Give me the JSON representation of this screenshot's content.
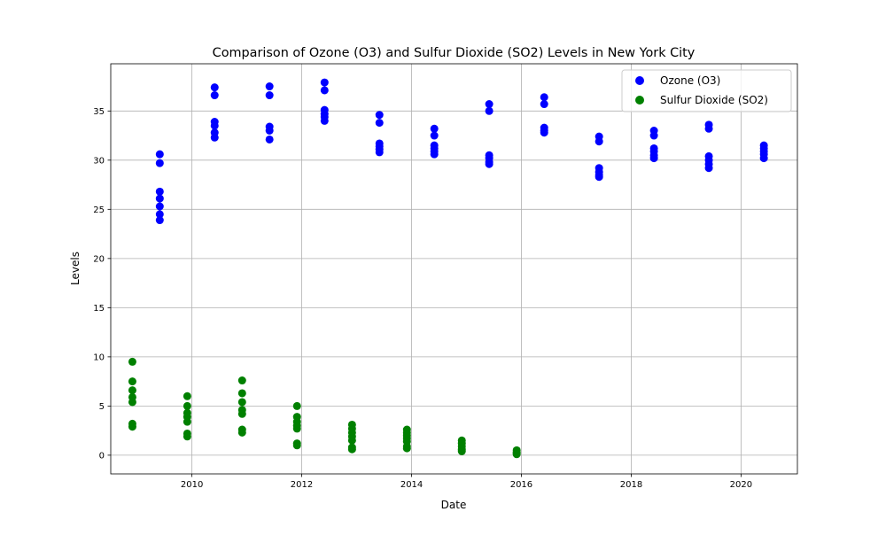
{
  "chart_data": {
    "type": "scatter",
    "title": "Comparison of Ozone (O3) and Sulfur Dioxide (SO2) Levels in New York City",
    "xlabel": "Date",
    "ylabel": "Levels",
    "x_axis_type": "date",
    "xlim": [
      "2008-07-10",
      "2021-01-10"
    ],
    "ylim": [
      -1.9,
      39.8
    ],
    "x_ticks": [
      "2010",
      "2012",
      "2014",
      "2016",
      "2018",
      "2020"
    ],
    "x_tick_dates": [
      "2010-01-01",
      "2012-01-01",
      "2014-01-01",
      "2016-01-01",
      "2018-01-01",
      "2020-01-01"
    ],
    "y_ticks": [
      0,
      5,
      10,
      15,
      20,
      25,
      30,
      35
    ],
    "grid": true,
    "legend_position": "top-right",
    "series": [
      {
        "name": "Ozone (O3)",
        "color": "#0000ff",
        "points": [
          [
            "2009-06-01",
            30.6
          ],
          [
            "2009-06-01",
            29.7
          ],
          [
            "2009-06-01",
            26.8
          ],
          [
            "2009-06-01",
            26.1
          ],
          [
            "2009-06-01",
            25.3
          ],
          [
            "2009-06-01",
            24.5
          ],
          [
            "2009-06-01",
            23.9
          ],
          [
            "2010-06-01",
            37.4
          ],
          [
            "2010-06-01",
            36.6
          ],
          [
            "2010-06-01",
            33.9
          ],
          [
            "2010-06-01",
            33.5
          ],
          [
            "2010-06-01",
            32.8
          ],
          [
            "2010-06-01",
            32.3
          ],
          [
            "2011-06-01",
            37.5
          ],
          [
            "2011-06-01",
            36.6
          ],
          [
            "2011-06-01",
            33.4
          ],
          [
            "2011-06-01",
            33.0
          ],
          [
            "2011-06-01",
            32.1
          ],
          [
            "2012-06-01",
            37.9
          ],
          [
            "2012-06-01",
            37.1
          ],
          [
            "2012-06-01",
            35.1
          ],
          [
            "2012-06-01",
            34.7
          ],
          [
            "2012-06-01",
            34.4
          ],
          [
            "2012-06-01",
            34.0
          ],
          [
            "2013-06-01",
            34.6
          ],
          [
            "2013-06-01",
            33.8
          ],
          [
            "2013-06-01",
            31.7
          ],
          [
            "2013-06-01",
            31.4
          ],
          [
            "2013-06-01",
            31.1
          ],
          [
            "2013-06-01",
            30.8
          ],
          [
            "2014-06-01",
            33.2
          ],
          [
            "2014-06-01",
            32.5
          ],
          [
            "2014-06-01",
            31.5
          ],
          [
            "2014-06-01",
            31.2
          ],
          [
            "2014-06-01",
            30.9
          ],
          [
            "2014-06-01",
            30.6
          ],
          [
            "2015-06-01",
            35.7
          ],
          [
            "2015-06-01",
            35.0
          ],
          [
            "2015-06-01",
            30.5
          ],
          [
            "2015-06-01",
            30.2
          ],
          [
            "2015-06-01",
            29.8
          ],
          [
            "2015-06-01",
            29.6
          ],
          [
            "2016-06-01",
            36.4
          ],
          [
            "2016-06-01",
            35.7
          ],
          [
            "2016-06-01",
            33.3
          ],
          [
            "2016-06-01",
            33.0
          ],
          [
            "2016-06-01",
            32.8
          ],
          [
            "2017-06-01",
            32.4
          ],
          [
            "2017-06-01",
            31.9
          ],
          [
            "2017-06-01",
            29.2
          ],
          [
            "2017-06-01",
            28.8
          ],
          [
            "2017-06-01",
            28.5
          ],
          [
            "2017-06-01",
            28.3
          ],
          [
            "2018-06-01",
            33.0
          ],
          [
            "2018-06-01",
            32.5
          ],
          [
            "2018-06-01",
            31.2
          ],
          [
            "2018-06-01",
            30.9
          ],
          [
            "2018-06-01",
            30.5
          ],
          [
            "2018-06-01",
            30.2
          ],
          [
            "2019-06-01",
            33.6
          ],
          [
            "2019-06-01",
            33.2
          ],
          [
            "2019-06-01",
            30.4
          ],
          [
            "2019-06-01",
            30.0
          ],
          [
            "2019-06-01",
            29.6
          ],
          [
            "2019-06-01",
            29.2
          ],
          [
            "2020-06-01",
            31.5
          ],
          [
            "2020-06-01",
            31.2
          ],
          [
            "2020-06-01",
            30.9
          ],
          [
            "2020-06-01",
            30.6
          ],
          [
            "2020-06-01",
            30.2
          ]
        ]
      },
      {
        "name": "Sulfur Dioxide (SO2)",
        "color": "#008000",
        "points": [
          [
            "2008-12-01",
            9.5
          ],
          [
            "2008-12-01",
            7.5
          ],
          [
            "2008-12-01",
            6.6
          ],
          [
            "2008-12-01",
            5.9
          ],
          [
            "2008-12-01",
            5.4
          ],
          [
            "2008-12-01",
            3.2
          ],
          [
            "2008-12-01",
            2.9
          ],
          [
            "2009-12-01",
            6.0
          ],
          [
            "2009-12-01",
            5.0
          ],
          [
            "2009-12-01",
            4.3
          ],
          [
            "2009-12-01",
            3.9
          ],
          [
            "2009-12-01",
            3.4
          ],
          [
            "2009-12-01",
            2.2
          ],
          [
            "2009-12-01",
            1.9
          ],
          [
            "2010-12-01",
            7.6
          ],
          [
            "2010-12-01",
            6.3
          ],
          [
            "2010-12-01",
            5.4
          ],
          [
            "2010-12-01",
            4.6
          ],
          [
            "2010-12-01",
            4.2
          ],
          [
            "2010-12-01",
            2.6
          ],
          [
            "2010-12-01",
            2.3
          ],
          [
            "2011-12-01",
            5.0
          ],
          [
            "2011-12-01",
            3.9
          ],
          [
            "2011-12-01",
            3.4
          ],
          [
            "2011-12-01",
            3.0
          ],
          [
            "2011-12-01",
            2.7
          ],
          [
            "2011-12-01",
            1.2
          ],
          [
            "2011-12-01",
            1.0
          ],
          [
            "2012-12-01",
            3.1
          ],
          [
            "2012-12-01",
            2.7
          ],
          [
            "2012-12-01",
            2.3
          ],
          [
            "2012-12-01",
            1.9
          ],
          [
            "2012-12-01",
            1.5
          ],
          [
            "2012-12-01",
            0.8
          ],
          [
            "2012-12-01",
            0.6
          ],
          [
            "2013-12-01",
            2.6
          ],
          [
            "2013-12-01",
            2.3
          ],
          [
            "2013-12-01",
            2.0
          ],
          [
            "2013-12-01",
            1.7
          ],
          [
            "2013-12-01",
            1.4
          ],
          [
            "2013-12-01",
            0.9
          ],
          [
            "2013-12-01",
            0.7
          ],
          [
            "2014-12-01",
            1.5
          ],
          [
            "2014-12-01",
            1.2
          ],
          [
            "2014-12-01",
            0.9
          ],
          [
            "2014-12-01",
            0.6
          ],
          [
            "2014-12-01",
            0.4
          ],
          [
            "2015-12-01",
            0.5
          ],
          [
            "2015-12-01",
            0.3
          ],
          [
            "2015-12-01",
            0.2
          ],
          [
            "2015-12-01",
            0.1
          ]
        ]
      }
    ]
  }
}
